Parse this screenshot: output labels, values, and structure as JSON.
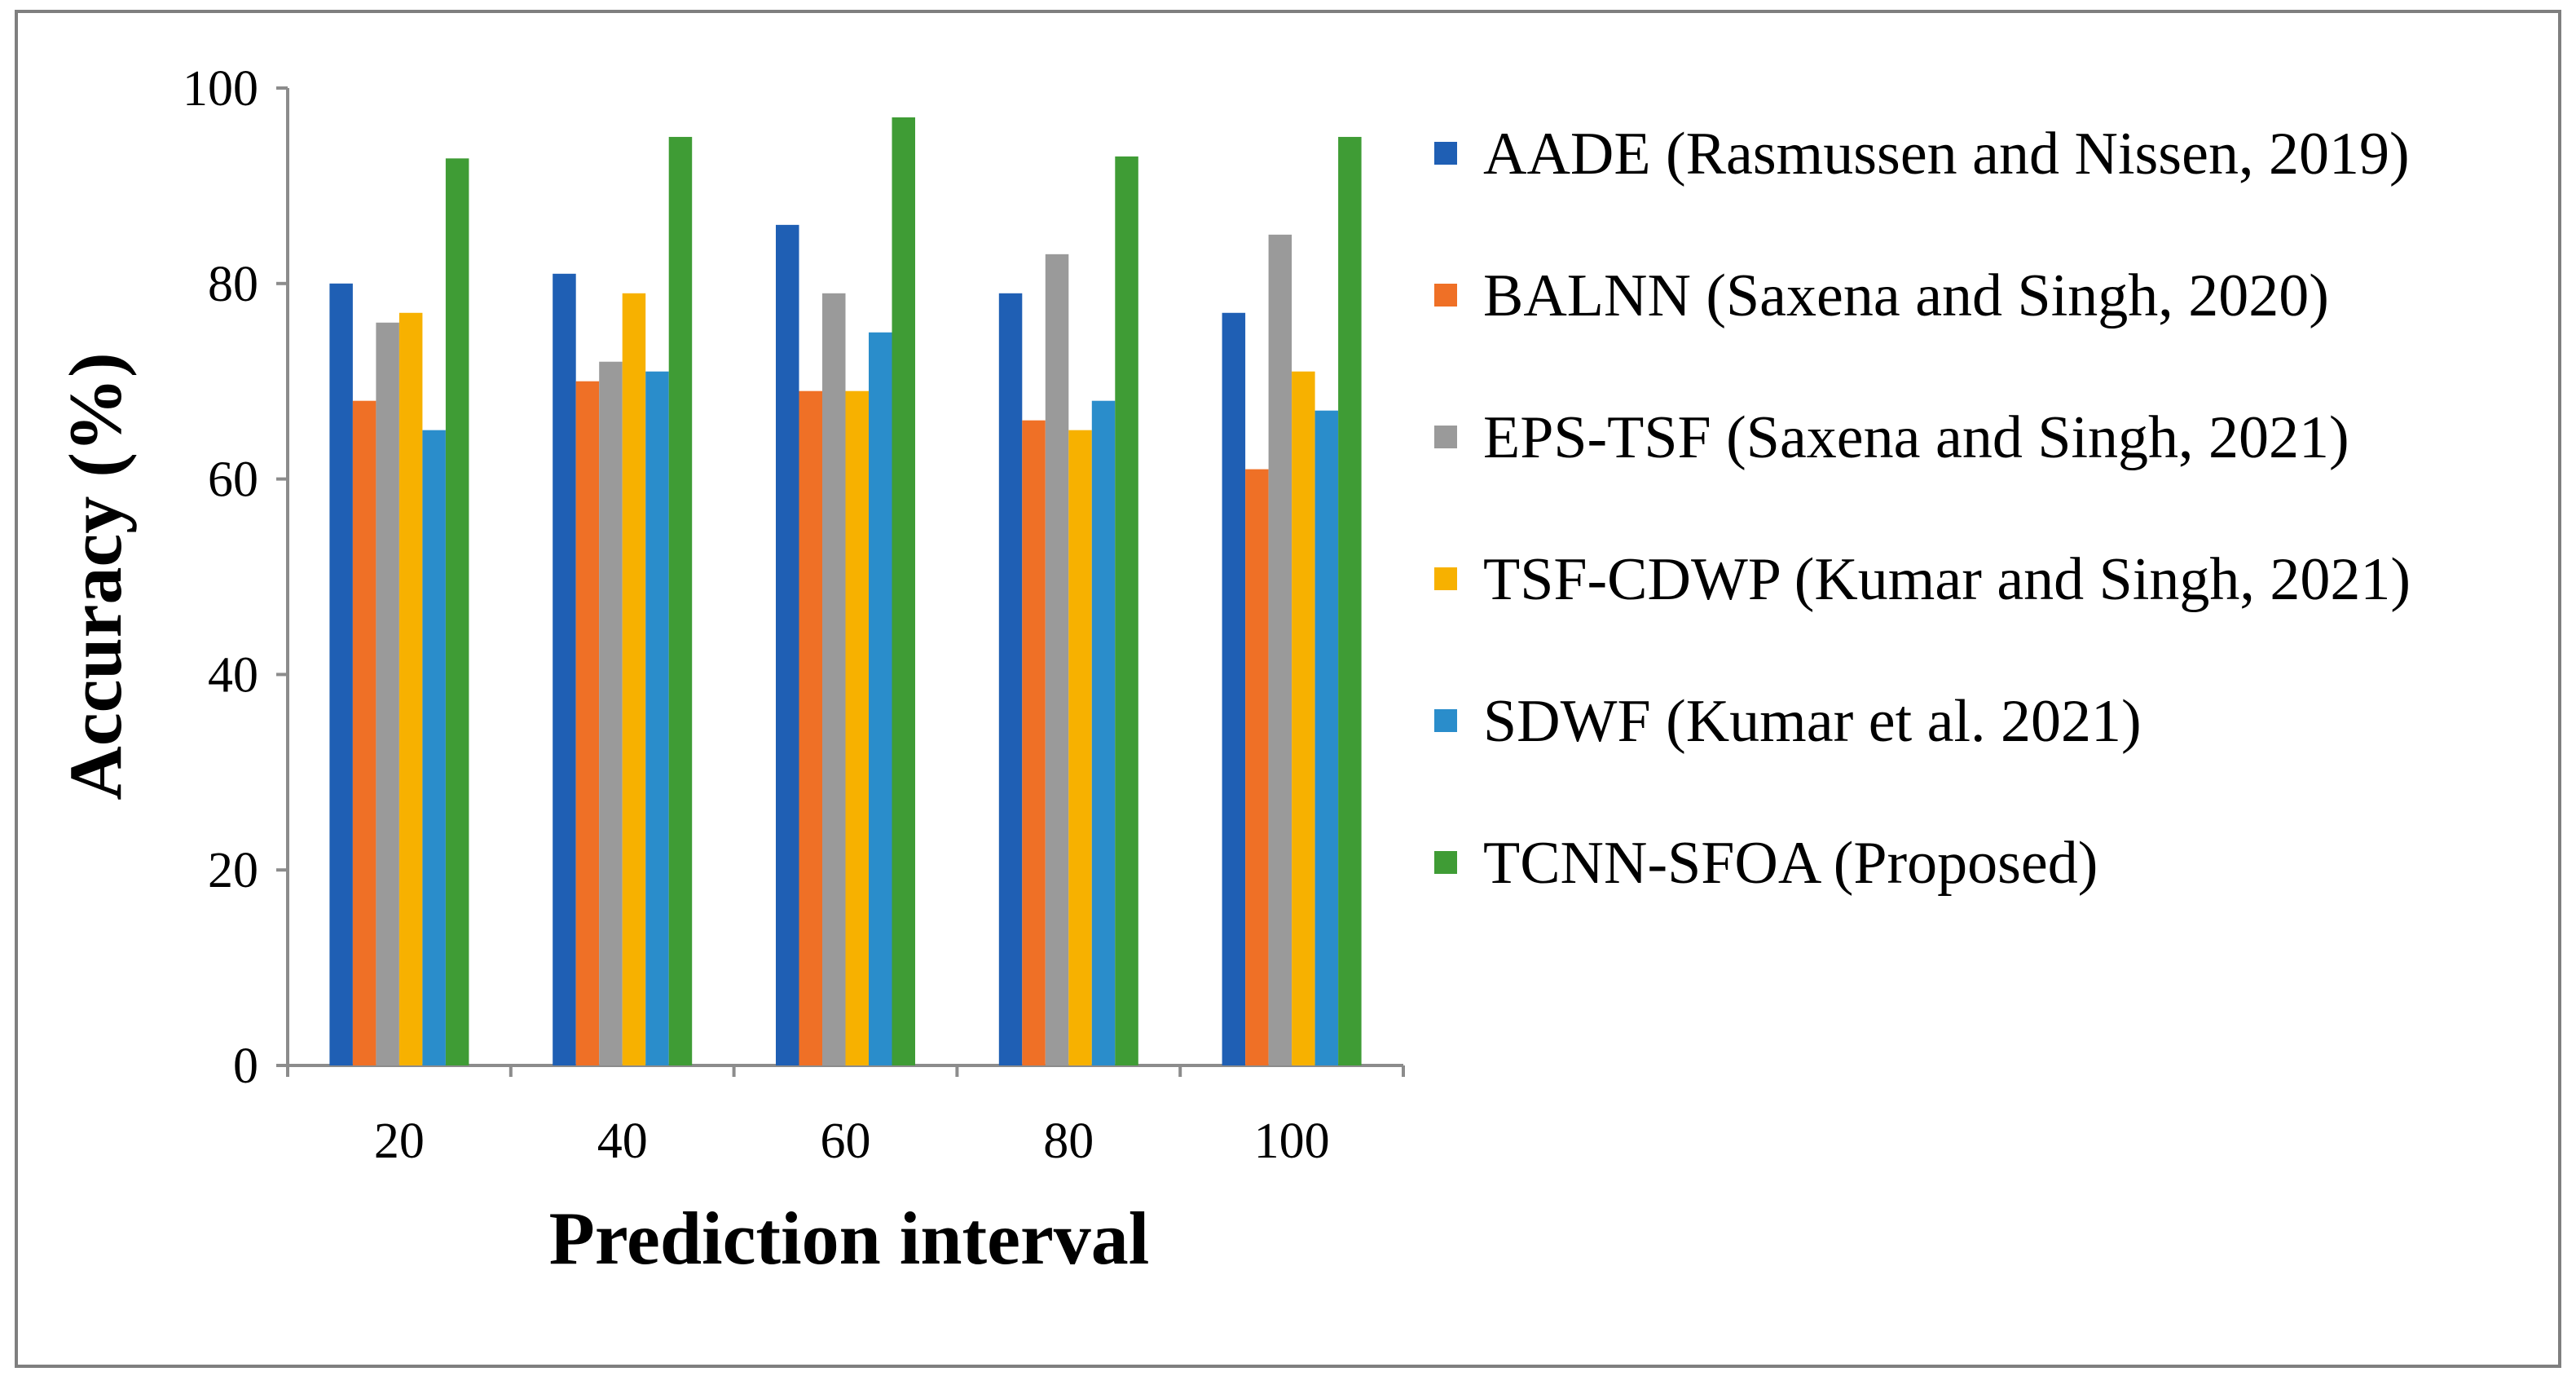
{
  "chart_data": {
    "type": "bar",
    "title": "",
    "xlabel": "Prediction interval",
    "ylabel": "Accuracy (%)",
    "ylim": [
      0,
      100
    ],
    "yticks": [
      0,
      20,
      40,
      60,
      80,
      100
    ],
    "grid": false,
    "legend_position": "right",
    "categories": [
      "20",
      "40",
      "60",
      "80",
      "100"
    ],
    "series": [
      {
        "name": "AADE (Rasmussen and Nissen, 2019)",
        "color": "#1f5fb4",
        "values": [
          80,
          81,
          86,
          79,
          77
        ]
      },
      {
        "name": "BALNN (Saxena and Singh, 2020)",
        "color": "#ef7026",
        "values": [
          68,
          70,
          69,
          66,
          61
        ]
      },
      {
        "name": "EPS-TSF (Saxena and Singh, 2021)",
        "color": "#9a9a9a",
        "values": [
          76,
          72,
          79,
          83,
          85
        ]
      },
      {
        "name": "TSF-CDWP (Kumar and Singh, 2021)",
        "color": "#f7b100",
        "values": [
          77,
          79,
          69,
          65,
          71
        ]
      },
      {
        "name": "SDWF (Kumar et al. 2021)",
        "color": "#2a8dcb",
        "values": [
          65,
          71,
          75,
          68,
          67
        ]
      },
      {
        "name": "TCNN-SFOA (Proposed)",
        "color": "#3f9c35",
        "values": [
          92.8,
          95,
          97,
          93,
          95
        ]
      }
    ]
  }
}
